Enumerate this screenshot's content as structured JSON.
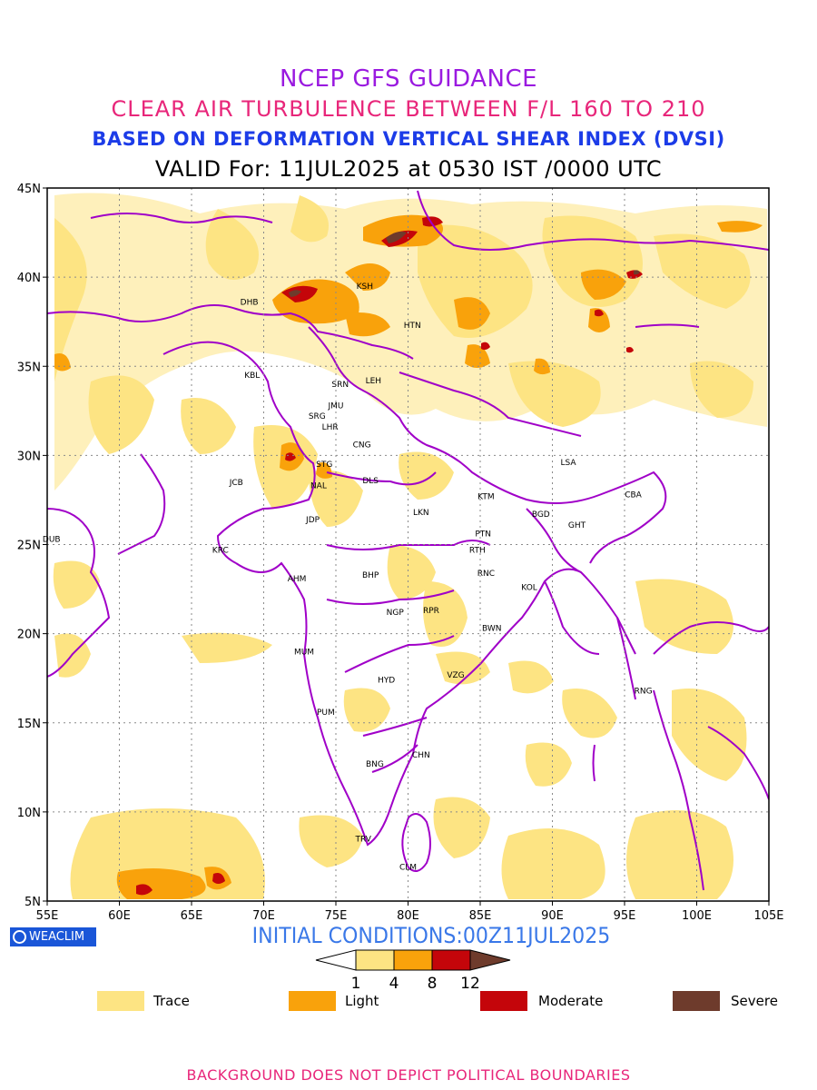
{
  "header": {
    "line1": "NCEP GFS GUIDANCE",
    "line2": "CLEAR AIR TURBULENCE BETWEEN F/L 160 TO 210",
    "line3": "BASED ON DEFORMATION VERTICAL SHEAR INDEX (DVSI)",
    "line4": "VALID For: 11JUL2025 at 0530 IST /0000 UTC"
  },
  "map": {
    "lat_labels": [
      "45N",
      "40N",
      "35N",
      "30N",
      "25N",
      "20N",
      "15N",
      "10N",
      "5N"
    ],
    "lon_labels": [
      "55E",
      "60E",
      "65E",
      "70E",
      "75E",
      "80E",
      "85E",
      "90E",
      "95E",
      "100E",
      "105E"
    ],
    "extent": {
      "lon_min": 55,
      "lon_max": 105,
      "lat_min": 5,
      "lat_max": 45
    },
    "stations": [
      {
        "code": "KSH",
        "lon": 77.0,
        "lat": 39.5
      },
      {
        "code": "DHB",
        "lon": 69.0,
        "lat": 38.6
      },
      {
        "code": "HTN",
        "lon": 80.3,
        "lat": 37.3
      },
      {
        "code": "KBL",
        "lon": 69.2,
        "lat": 34.5
      },
      {
        "code": "SRN",
        "lon": 75.3,
        "lat": 34.0
      },
      {
        "code": "LEH",
        "lon": 77.6,
        "lat": 34.2
      },
      {
        "code": "JMU",
        "lon": 75.0,
        "lat": 32.8
      },
      {
        "code": "SRG",
        "lon": 73.7,
        "lat": 32.2
      },
      {
        "code": "LHR",
        "lon": 74.6,
        "lat": 31.6
      },
      {
        "code": "CNG",
        "lon": 76.8,
        "lat": 30.6
      },
      {
        "code": "STG",
        "lon": 74.2,
        "lat": 29.5
      },
      {
        "code": "NAL",
        "lon": 73.8,
        "lat": 28.3
      },
      {
        "code": "JCB",
        "lon": 68.1,
        "lat": 28.5
      },
      {
        "code": "DLS",
        "lon": 77.4,
        "lat": 28.6
      },
      {
        "code": "LSA",
        "lon": 91.1,
        "lat": 29.6
      },
      {
        "code": "KTM",
        "lon": 85.4,
        "lat": 27.7
      },
      {
        "code": "CBA",
        "lon": 95.6,
        "lat": 27.8
      },
      {
        "code": "JDP",
        "lon": 73.4,
        "lat": 26.4
      },
      {
        "code": "LKN",
        "lon": 80.9,
        "lat": 26.8
      },
      {
        "code": "BGD",
        "lon": 89.2,
        "lat": 26.7
      },
      {
        "code": "GHT",
        "lon": 91.7,
        "lat": 26.1
      },
      {
        "code": "PTN",
        "lon": 85.2,
        "lat": 25.6
      },
      {
        "code": "DUB",
        "lon": 55.3,
        "lat": 25.3
      },
      {
        "code": "KRC",
        "lon": 67.0,
        "lat": 24.7
      },
      {
        "code": "RTH",
        "lon": 84.8,
        "lat": 24.7
      },
      {
        "code": "AHM",
        "lon": 72.3,
        "lat": 23.1
      },
      {
        "code": "BHP",
        "lon": 77.4,
        "lat": 23.3
      },
      {
        "code": "RNC",
        "lon": 85.4,
        "lat": 23.4
      },
      {
        "code": "KOL",
        "lon": 88.4,
        "lat": 22.6
      },
      {
        "code": "NGP",
        "lon": 79.1,
        "lat": 21.2
      },
      {
        "code": "RPR",
        "lon": 81.6,
        "lat": 21.3
      },
      {
        "code": "BWN",
        "lon": 85.8,
        "lat": 20.3
      },
      {
        "code": "MUM",
        "lon": 72.8,
        "lat": 19.0
      },
      {
        "code": "HYD",
        "lon": 78.5,
        "lat": 17.4
      },
      {
        "code": "VZG",
        "lon": 83.3,
        "lat": 17.7
      },
      {
        "code": "RNG",
        "lon": 96.3,
        "lat": 16.8
      },
      {
        "code": "PUM",
        "lon": 74.3,
        "lat": 15.6
      },
      {
        "code": "CHN",
        "lon": 80.9,
        "lat": 13.2
      },
      {
        "code": "BNG",
        "lon": 77.7,
        "lat": 12.7
      },
      {
        "code": "TRV",
        "lon": 76.9,
        "lat": 8.5
      },
      {
        "code": "CLM",
        "lon": 80.0,
        "lat": 6.9
      }
    ],
    "colors": {
      "trace": "#fde483",
      "light": "#f9a20b",
      "moderate": "#c4050a",
      "severe": "#6e3b2c",
      "boundary": "#a000c8",
      "grid": "#8a8a8a"
    }
  },
  "logo": {
    "text": "WEACLIM",
    "icon": "globe-ring-icon"
  },
  "initial_conditions": "INITIAL CONDITIONS:00Z11JUL2025",
  "colorbar": {
    "ticks": [
      "1",
      "4",
      "8",
      "12"
    ]
  },
  "legend": [
    {
      "label": "Trace",
      "color": "#fde483"
    },
    {
      "label": "Light",
      "color": "#f9a20b"
    },
    {
      "label": "Moderate",
      "color": "#c4050a"
    },
    {
      "label": "Severe",
      "color": "#6e3b2c"
    }
  ],
  "footer": "BACKGROUND DOES NOT DEPICT POLITICAL BOUNDARIES"
}
